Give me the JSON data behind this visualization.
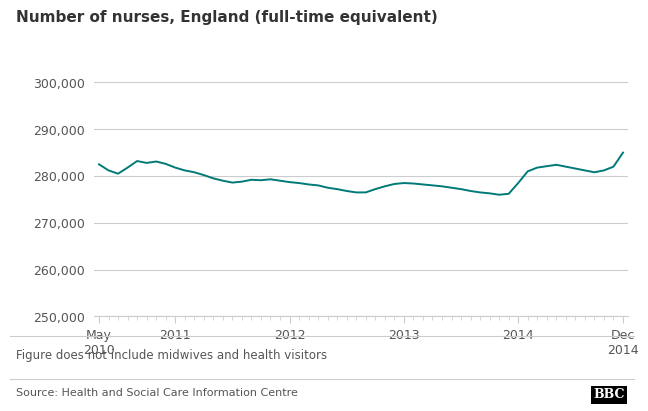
{
  "title": "Number of nurses, England (full-time equivalent)",
  "footnote": "Figure does not include midwives and health visitors",
  "source": "Source: Health and Social Care Information Centre",
  "line_color": "#007A78",
  "line_width": 1.4,
  "background_color": "#ffffff",
  "grid_color": "#cccccc",
  "ylim": [
    250000,
    305000
  ],
  "yticks": [
    250000,
    260000,
    270000,
    280000,
    290000,
    300000
  ],
  "ytick_labels": [
    "250,000",
    "260,000",
    "270,000",
    "280,000",
    "290,000",
    "300,000"
  ],
  "xtick_positions": [
    0,
    8,
    20,
    32,
    44,
    55
  ],
  "xtick_labels": [
    "May\n2010",
    "2011",
    "2012",
    "2013",
    "2014",
    "Dec\n2014"
  ],
  "values": [
    282500,
    281200,
    280500,
    281800,
    283200,
    282800,
    283100,
    282600,
    281800,
    281200,
    280800,
    280200,
    279500,
    279000,
    278600,
    278800,
    279200,
    279100,
    279300,
    279000,
    278700,
    278500,
    278200,
    278000,
    277500,
    277200,
    276800,
    276500,
    276500,
    277200,
    277800,
    278300,
    278500,
    278400,
    278200,
    278000,
    277800,
    277500,
    277200,
    276800,
    276500,
    276300,
    276000,
    276200,
    278500,
    281000,
    281800,
    282100,
    282400,
    282000,
    281600,
    281200,
    280800,
    281200,
    282000,
    285000
  ]
}
